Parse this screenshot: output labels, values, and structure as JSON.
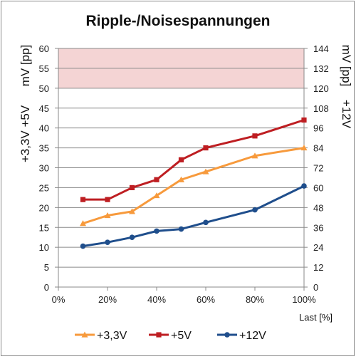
{
  "chart_data": {
    "type": "line",
    "title": "Ripple-/Noisespannungen",
    "xlabel": "Last [%]",
    "ylabel_left": [
      "+3,3V +5V",
      "mV [pp]"
    ],
    "ylabel_right": [
      "+12V",
      "mV [pp]"
    ],
    "x_tick_labels": [
      "0%",
      "20%",
      "40%",
      "60%",
      "80%",
      "100%"
    ],
    "x_ticks": [
      0,
      20,
      40,
      60,
      80,
      100
    ],
    "xlim": [
      0,
      100
    ],
    "ylim_left": [
      0,
      60
    ],
    "y_ticks_left": [
      0,
      5,
      10,
      15,
      20,
      25,
      30,
      35,
      40,
      45,
      50,
      55,
      60
    ],
    "ylim_right": [
      0,
      144
    ],
    "y_ticks_right": [
      0,
      12,
      24,
      36,
      48,
      60,
      72,
      84,
      96,
      108,
      120,
      132,
      144
    ],
    "limit_band_left": [
      50,
      60
    ],
    "limit_band_color": "#f4d4d4",
    "grid": true,
    "legend_position": "bottom",
    "series": [
      {
        "name": "+3,3V",
        "axis": "left",
        "color": "#f79a3c",
        "marker": "triangle",
        "x": [
          10,
          20,
          30,
          40,
          50,
          60,
          80,
          100
        ],
        "values": [
          16,
          18,
          19,
          23,
          27,
          29,
          33,
          35
        ]
      },
      {
        "name": "+5V",
        "axis": "left",
        "color": "#be1e22",
        "marker": "square",
        "x": [
          10,
          20,
          30,
          40,
          50,
          60,
          80,
          100
        ],
        "values": [
          22,
          22,
          25,
          27,
          32,
          35,
          38,
          42
        ]
      },
      {
        "name": "+12V",
        "axis": "right",
        "color": "#1f4e8c",
        "marker": "circle",
        "x": [
          10,
          20,
          30,
          40,
          50,
          60,
          80,
          100
        ],
        "values": [
          24.7,
          27,
          30,
          33.8,
          35,
          39,
          46.6,
          61
        ]
      }
    ]
  }
}
